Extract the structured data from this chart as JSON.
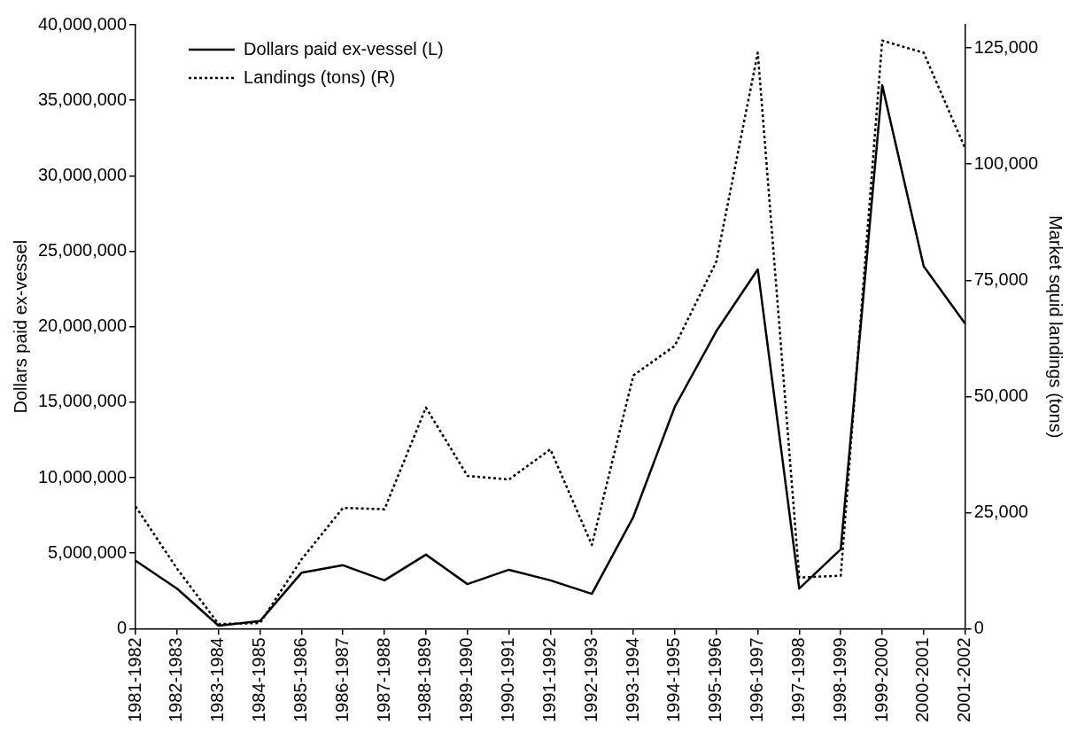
{
  "chart_data": {
    "type": "line",
    "categories": [
      "1981-1982",
      "1982-1983",
      "1983-1984",
      "1984-1985",
      "1985-1986",
      "1986-1987",
      "1987-1988",
      "1988-1989",
      "1989-1990",
      "1990-1991",
      "1991-1992",
      "1992-1993",
      "1993-1994",
      "1994-1995",
      "1995-1996",
      "1996-1997",
      "1997-1998",
      "1998-1999",
      "1999-2000",
      "2000-2001",
      "2001-2002"
    ],
    "series": [
      {
        "name": "Dollars paid ex-vessel (L)",
        "color": "#000000",
        "line_style": "solid",
        "values": [
          4500000,
          2650000,
          200000,
          500000,
          3700000,
          4200000,
          3200000,
          4900000,
          2950000,
          3900000,
          3200000,
          2300000,
          7400000,
          14700000,
          19700000,
          23800000,
          2650000,
          5250000,
          36000000,
          24000000,
          20200000
        ]
      },
      {
        "name": "Landings (tons) (R)",
        "color": "#000000",
        "line_style": "dotted",
        "axis": "y2",
        "values": [
          26300,
          12900,
          1000,
          1200,
          14900,
          26000,
          25700,
          47600,
          32900,
          32100,
          38600,
          18000,
          54500,
          60900,
          79000,
          124000,
          11000,
          11400,
          126600,
          124000,
          103400
        ]
      }
    ],
    "ylabel": "Dollars paid ex-vessel",
    "y2label": "Market squid landings (tons)",
    "ylim": [
      0,
      40000000
    ],
    "yticks": [
      {
        "value": 0,
        "label": "0"
      },
      {
        "value": 5000000,
        "label": "5,000,000"
      },
      {
        "value": 10000000,
        "label": "10,000,000"
      },
      {
        "value": 15000000,
        "label": "15,000,000"
      },
      {
        "value": 20000000,
        "label": "20,000,000"
      },
      {
        "value": 25000000,
        "label": "25,000,000"
      },
      {
        "value": 30000000,
        "label": "30,000,000"
      },
      {
        "value": 35000000,
        "label": "35,000,000"
      },
      {
        "value": 40000000,
        "label": "40,000,000"
      }
    ],
    "y2lim": [
      0,
      130000
    ],
    "y2ticks": [
      {
        "value": 0,
        "label": "0"
      },
      {
        "value": 25000,
        "label": "25,000"
      },
      {
        "value": 50000,
        "label": "50,000"
      },
      {
        "value": 75000,
        "label": "75,000"
      },
      {
        "value": 100000,
        "label": "100,000"
      },
      {
        "value": 125000,
        "label": "125,000"
      }
    ],
    "grid": false,
    "legend": "top left",
    "marker": "none"
  }
}
